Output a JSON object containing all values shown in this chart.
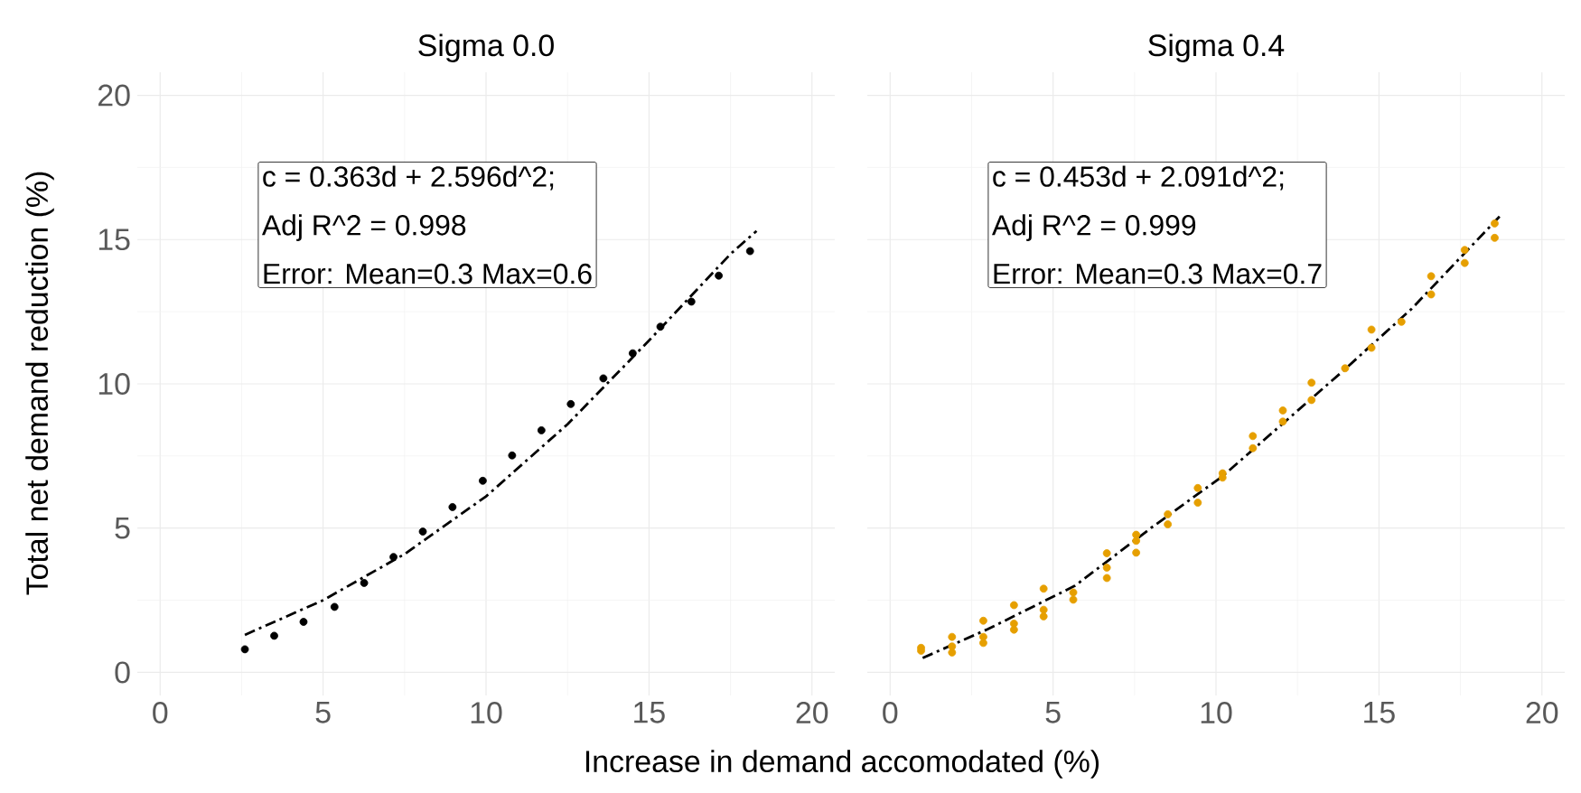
{
  "chart_data": [
    {
      "type": "scatter",
      "title": "Sigma 0.0",
      "xlabel": "Increase in demand accomodated (%)",
      "ylabel": "Total net demand reduction (%)",
      "xlim": [
        -0.7,
        20.7
      ],
      "ylim": [
        -0.8,
        20.8
      ],
      "xticks": [
        0,
        5,
        10,
        15,
        20
      ],
      "yticks": [
        0,
        5,
        10,
        15,
        20
      ],
      "grid": true,
      "annotations": [
        "c = 0.363d + 2.596d^2;",
        "Adj R^2 = 0.998",
        "Error: Mean=0.3 Max=0.6"
      ],
      "series": [
        {
          "color": "#000000",
          "marker": "circle",
          "x": [
            2.6,
            3.5,
            4.4,
            5.35,
            6.26,
            7.16,
            8.06,
            8.97,
            9.9,
            10.8,
            11.7,
            12.6,
            13.6,
            14.5,
            15.35,
            16.3,
            17.14,
            18.1
          ],
          "values": [
            0.8,
            1.27,
            1.75,
            2.27,
            3.1,
            4.0,
            4.88,
            5.73,
            6.64,
            7.52,
            8.39,
            9.3,
            10.19,
            11.06,
            11.98,
            12.85,
            13.75,
            14.6
          ]
        },
        {
          "type": "line",
          "color": "#000000",
          "line_style": "dashed",
          "marker": "none",
          "x": [
            2.6,
            5,
            7.5,
            10,
            12.5,
            15,
            17.5,
            18.3
          ],
          "values": [
            1.3,
            2.5,
            4.1,
            6.1,
            8.6,
            11.5,
            14.5,
            15.3
          ]
        }
      ]
    },
    {
      "type": "scatter",
      "title": "Sigma 0.4",
      "tick_labels": "x",
      "xlim": [
        -0.7,
        20.7
      ],
      "ylim": [
        -0.8,
        20.8
      ],
      "xticks": [
        0,
        5,
        10,
        15,
        20
      ],
      "yticks": [
        0,
        5,
        10,
        15,
        20
      ],
      "grid": true,
      "annotations": [
        "c = 0.453d + 2.091d^2;",
        "Adj R^2 = 0.999",
        "Error: Mean=0.3 Max=0.7"
      ],
      "series": [
        {
          "color": "#e69f00",
          "marker": "circle",
          "x": [
            0.95,
            0.95,
            1.9,
            1.9,
            1.9,
            2.86,
            2.86,
            2.86,
            3.8,
            3.8,
            3.8,
            4.71,
            4.71,
            4.71,
            5.62,
            5.62,
            6.65,
            6.65,
            6.65,
            7.55,
            7.55,
            7.55,
            8.52,
            8.52,
            9.44,
            9.44,
            10.2,
            10.2,
            11.13,
            11.13,
            12.05,
            12.05,
            12.93,
            12.93,
            13.96,
            14.77,
            14.77,
            15.69,
            16.6,
            16.6,
            17.63,
            17.63,
            18.55,
            18.55
          ],
          "values": [
            0.75,
            0.85,
            1.23,
            0.69,
            0.9,
            1.79,
            1.02,
            1.23,
            2.33,
            1.48,
            1.69,
            2.9,
            1.94,
            2.17,
            2.77,
            2.52,
            4.13,
            3.63,
            3.27,
            4.77,
            4.15,
            4.56,
            5.48,
            5.13,
            6.39,
            5.88,
            6.9,
            6.75,
            7.77,
            8.19,
            8.69,
            9.08,
            9.44,
            10.04,
            10.54,
            11.25,
            11.88,
            12.15,
            13.1,
            13.73,
            14.19,
            14.64,
            15.06,
            15.56
          ]
        },
        {
          "type": "line",
          "color": "#000000",
          "line_style": "dashed",
          "marker": "none",
          "x": [
            1.0,
            3,
            5.67,
            8,
            10.2,
            13.85,
            16,
            18.7
          ],
          "values": [
            0.5,
            1.5,
            3.0,
            5.0,
            6.8,
            10.4,
            12.6,
            15.8
          ]
        }
      ]
    }
  ]
}
